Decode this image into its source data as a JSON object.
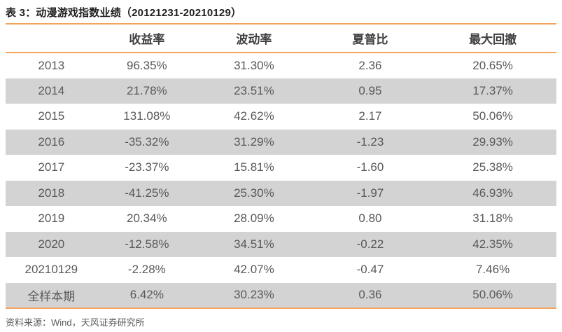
{
  "table": {
    "title": "表 3：动漫游戏指数业绩（20121231-20210129）",
    "columns": [
      "",
      "收益率",
      "波动率",
      "夏普比",
      "最大回撤"
    ],
    "rows": [
      [
        "2013",
        "96.35%",
        "31.30%",
        "2.36",
        "20.65%"
      ],
      [
        "2014",
        "21.78%",
        "23.51%",
        "0.95",
        "17.37%"
      ],
      [
        "2015",
        "131.08%",
        "42.62%",
        "2.17",
        "50.06%"
      ],
      [
        "2016",
        "-35.32%",
        "31.29%",
        "-1.23",
        "29.93%"
      ],
      [
        "2017",
        "-23.37%",
        "15.81%",
        "-1.60",
        "25.38%"
      ],
      [
        "2018",
        "-41.25%",
        "25.30%",
        "-1.97",
        "46.93%"
      ],
      [
        "2019",
        "20.34%",
        "28.09%",
        "0.80",
        "31.18%"
      ],
      [
        "2020",
        "-12.58%",
        "34.51%",
        "-0.22",
        "42.35%"
      ],
      [
        "20210129",
        "-2.28%",
        "42.07%",
        "-0.47",
        "7.46%"
      ],
      [
        "全样本期",
        "6.42%",
        "30.23%",
        "0.36",
        "50.06%"
      ]
    ]
  },
  "footer": {
    "source": "资料来源：Wind，天风证券研究所"
  },
  "colors": {
    "accent": "#F2A45C",
    "stripe": "#D3D3D3",
    "data_text": "#595959",
    "header_text": "#3F3F3F",
    "title_text": "#1F1F1F"
  }
}
